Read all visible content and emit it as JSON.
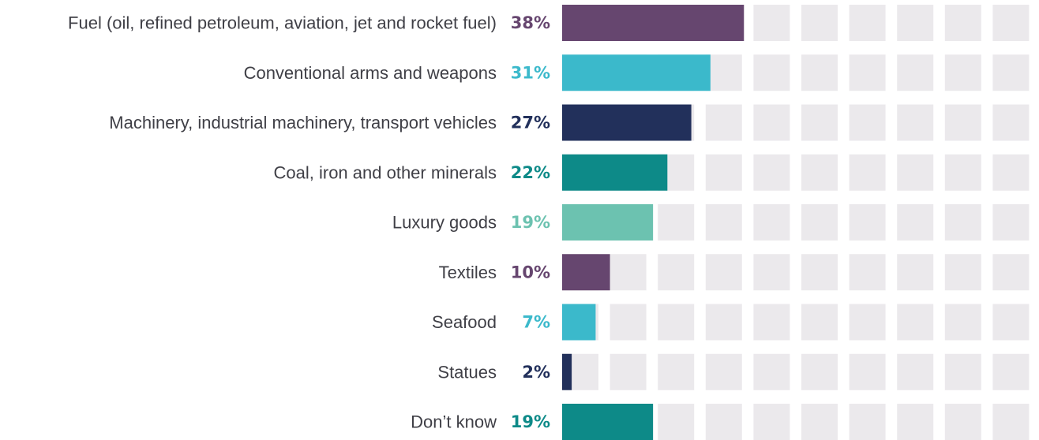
{
  "chart_data": {
    "type": "bar",
    "orientation": "horizontal",
    "categories": [
      "Fuel (oil, refined petroleum, aviation, jet and rocket fuel)",
      "Conventional arms and weapons",
      "Machinery, industrial machinery, transport vehicles",
      "Coal, iron and other minerals",
      "Luxury goods",
      "Textiles",
      "Seafood",
      "Statues",
      "Don’t know"
    ],
    "values": [
      38,
      31,
      27,
      22,
      19,
      10,
      7,
      2,
      19
    ],
    "value_labels": [
      "38%",
      "31%",
      "27%",
      "22%",
      "19%",
      "10%",
      "7%",
      "2%",
      "19%"
    ],
    "unit": "%",
    "xlim": [
      0,
      100
    ],
    "background_cells": 10,
    "grid": false,
    "legend": "none",
    "colors": [
      "#66466f",
      "#3bb9cb",
      "#22305b",
      "#0d8a88",
      "#6cc2b0",
      "#66466f",
      "#3bb9cb",
      "#22305b",
      "#0d8a88"
    ],
    "track_color": "#ebe9ec"
  }
}
